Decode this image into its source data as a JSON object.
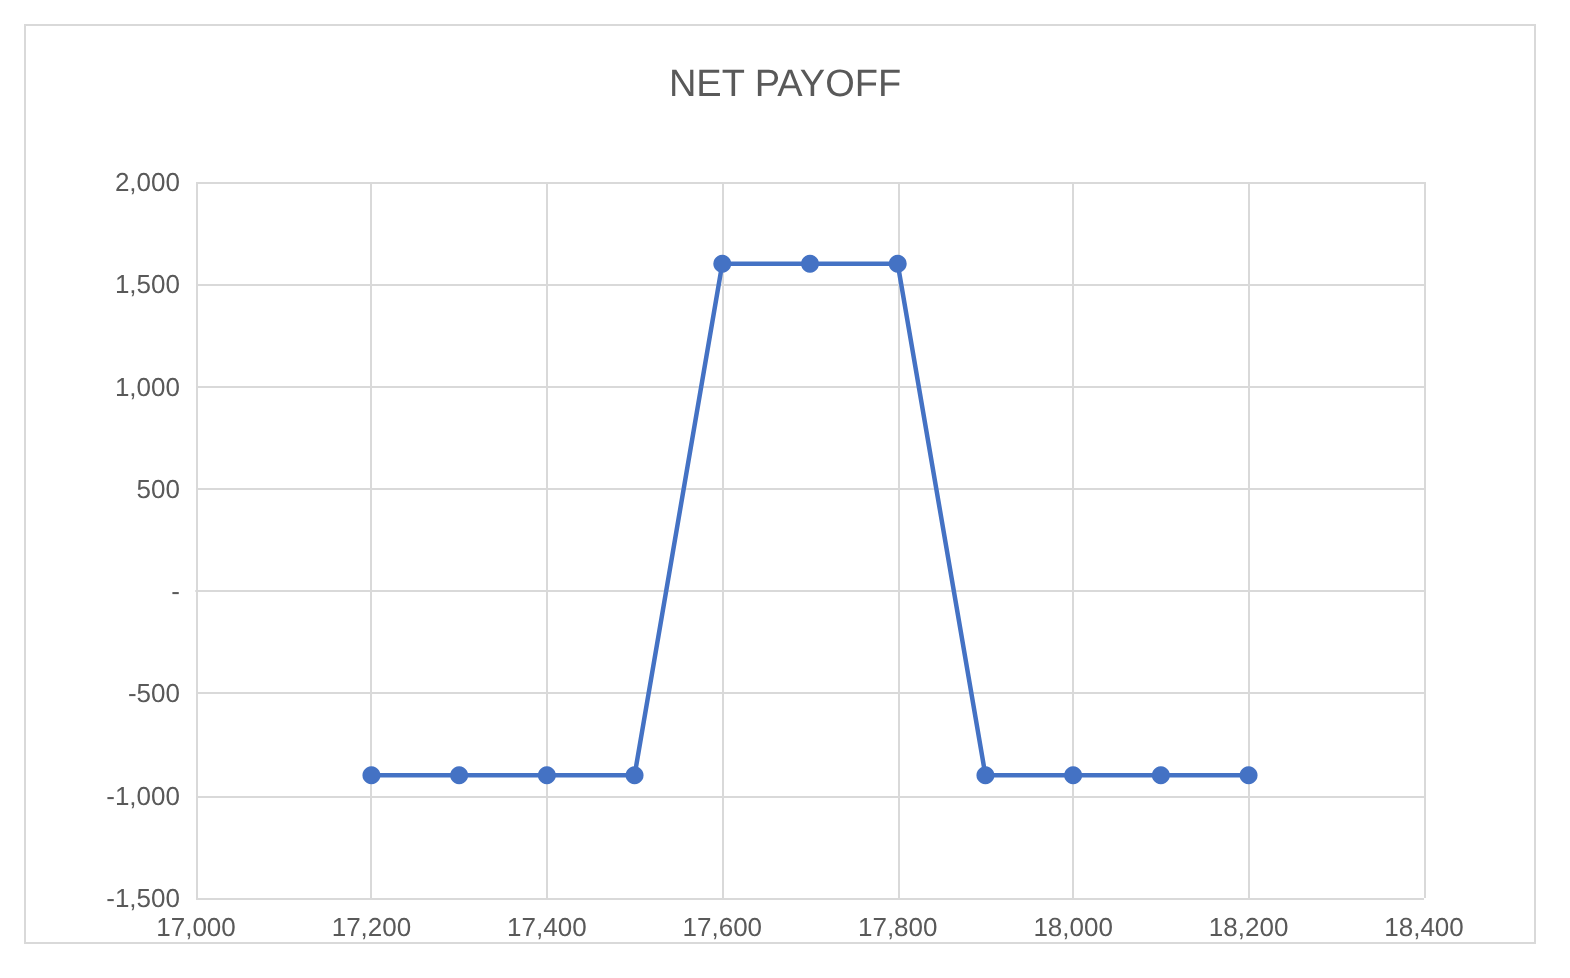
{
  "chart_data": {
    "type": "line",
    "title": "NET PAYOFF",
    "x": [
      17200,
      17300,
      17400,
      17500,
      17600,
      17700,
      17800,
      17900,
      18000,
      18100,
      18200
    ],
    "series": [
      {
        "color": "#4472c4",
        "values": [
          -900,
          -900,
          -900,
          -900,
          1600,
          1600,
          1600,
          -900,
          -900,
          -900,
          -900
        ]
      }
    ],
    "xlim": [
      17000,
      18400
    ],
    "xticks": [
      {
        "value": 17000,
        "label": "17,000"
      },
      {
        "value": 17200,
        "label": "17,200"
      },
      {
        "value": 17400,
        "label": "17,400"
      },
      {
        "value": 17600,
        "label": "17,600"
      },
      {
        "value": 17800,
        "label": "17,800"
      },
      {
        "value": 18000,
        "label": "18,000"
      },
      {
        "value": 18200,
        "label": "18,200"
      },
      {
        "value": 18400,
        "label": "18,400"
      }
    ],
    "ylim": [
      -1500,
      2000
    ],
    "yticks": [
      {
        "value": -1500,
        "label": "-1,500"
      },
      {
        "value": -1000,
        "label": "-1,000"
      },
      {
        "value": -500,
        "label": "-500"
      },
      {
        "value": 0,
        "label": "-"
      },
      {
        "value": 500,
        "label": "500"
      },
      {
        "value": 1000,
        "label": "1,000"
      },
      {
        "value": 1500,
        "label": "1,500"
      },
      {
        "value": 2000,
        "label": "2,000"
      }
    ],
    "grid": true,
    "marker": "circle",
    "line_style": "solid"
  }
}
